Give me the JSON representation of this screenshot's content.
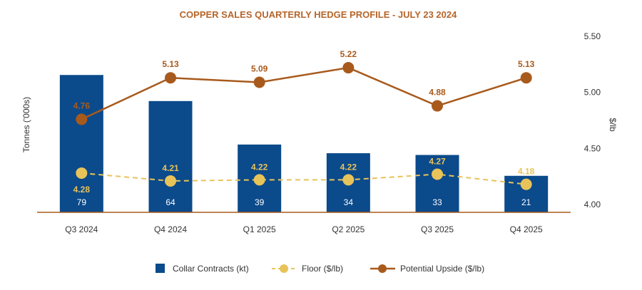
{
  "chart_data": {
    "type": "bar",
    "title": "COPPER SALES QUARTERLY HEDGE PROFILE - JULY 23 2024",
    "categories": [
      "Q3 2024",
      "Q4 2024",
      "Q1 2025",
      "Q2 2025",
      "Q3 2025",
      "Q4 2025"
    ],
    "ylabel": "Tonnes ('000s)",
    "y2label": "$/lb",
    "y2lim": [
      4.0,
      5.5
    ],
    "y2ticks": [
      "4.00",
      "4.50",
      "5.00",
      "5.50"
    ],
    "series": [
      {
        "name": "Collar Contracts (kt)",
        "type": "bar",
        "axis": "left",
        "color": "#0b4a8b",
        "values": [
          79,
          64,
          39,
          34,
          33,
          21
        ],
        "labels": [
          "79",
          "64",
          "39",
          "34",
          "33",
          "21"
        ]
      },
      {
        "name": "Floor ($/lb)",
        "type": "line",
        "axis": "right",
        "style": "dashed",
        "color": "#e8c35a",
        "values": [
          4.28,
          4.21,
          4.22,
          4.22,
          4.27,
          4.18
        ],
        "labels": [
          "4.28",
          "4.21",
          "4.22",
          "4.22",
          "4.27",
          "4.18"
        ]
      },
      {
        "name": "Potential Upside ($/lb)",
        "type": "line",
        "axis": "right",
        "color": "#a85a1c",
        "values": [
          4.76,
          5.13,
          5.09,
          5.22,
          4.88,
          5.13
        ],
        "labels": [
          "4.76",
          "5.13",
          "5.09",
          "5.22",
          "4.88",
          "5.13"
        ]
      }
    ],
    "legend": "bottom",
    "grid": false,
    "title_color": "#b5652a"
  }
}
